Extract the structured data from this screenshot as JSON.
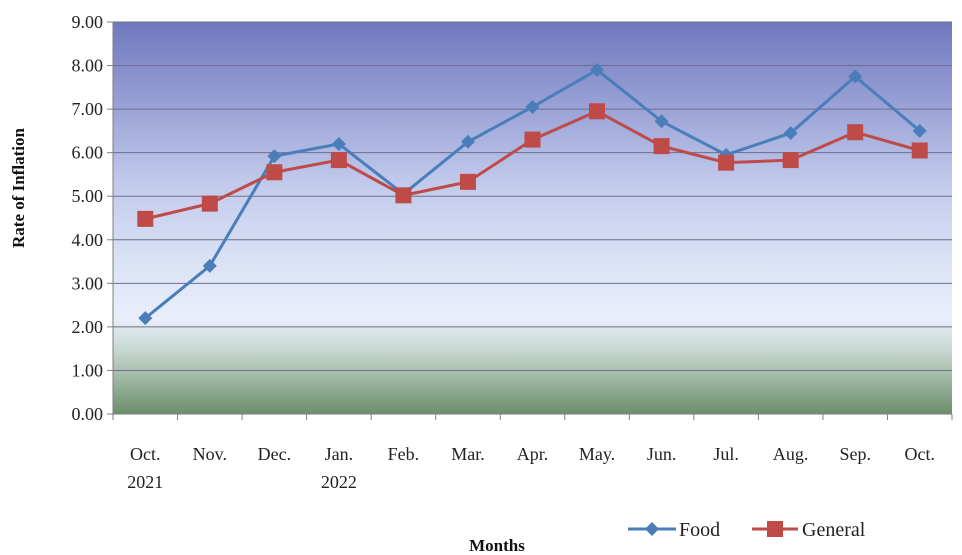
{
  "chart_data": {
    "type": "line",
    "title": "",
    "xlabel": "Months",
    "ylabel": "Rate of Inflation",
    "ylim": [
      0,
      9
    ],
    "yticks": [
      "0.00",
      "1.00",
      "2.00",
      "3.00",
      "4.00",
      "5.00",
      "6.00",
      "7.00",
      "8.00",
      "9.00"
    ],
    "categories": [
      {
        "line1": "Oct.",
        "line2": "2021"
      },
      {
        "line1": "Nov.",
        "line2": ""
      },
      {
        "line1": "Dec.",
        "line2": ""
      },
      {
        "line1": "Jan.",
        "line2": "2022"
      },
      {
        "line1": "Feb.",
        "line2": ""
      },
      {
        "line1": "Mar.",
        "line2": ""
      },
      {
        "line1": "Apr.",
        "line2": ""
      },
      {
        "line1": "May.",
        "line2": ""
      },
      {
        "line1": "Jun.",
        "line2": ""
      },
      {
        "line1": "Jul.",
        "line2": ""
      },
      {
        "line1": "Aug.",
        "line2": ""
      },
      {
        "line1": "Sep.",
        "line2": ""
      },
      {
        "line1": "Oct.",
        "line2": ""
      }
    ],
    "series": [
      {
        "name": "Food",
        "color": "#4a7ebb",
        "marker": "diamond",
        "values": [
          2.2,
          3.4,
          5.92,
          6.2,
          5.05,
          6.25,
          7.05,
          7.9,
          6.72,
          5.95,
          6.45,
          7.75,
          6.5
        ]
      },
      {
        "name": "General",
        "color": "#be4b48",
        "marker": "square",
        "values": [
          4.48,
          4.83,
          5.55,
          5.83,
          5.02,
          5.33,
          6.3,
          6.95,
          6.15,
          5.77,
          5.83,
          6.47,
          6.05
        ]
      }
    ],
    "grid": true,
    "legend_position": "bottom-right"
  }
}
